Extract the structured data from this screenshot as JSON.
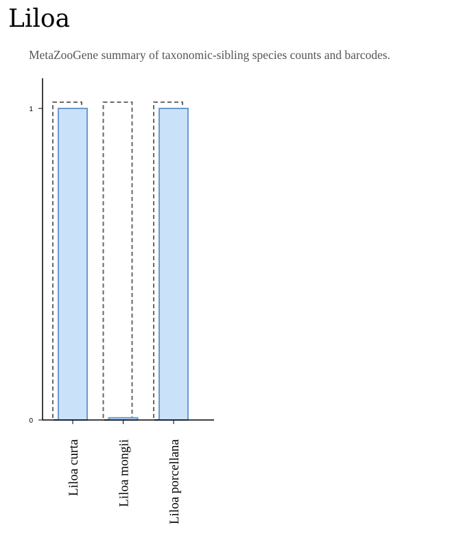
{
  "header": {
    "title": "Liloa",
    "subtitle": "MetaZooGene summary of taxonomic-sibling species counts and barcodes."
  },
  "chart_data": {
    "type": "bar",
    "categories": [
      "Liloa curta",
      "Liloa mongii",
      "Liloa porcellana"
    ],
    "series": [
      {
        "values": [
          1.02,
          1.02,
          1.02
        ],
        "style": "dashed-outline",
        "color": "#666666"
      },
      {
        "values": [
          1.0,
          0.007,
          1.0
        ],
        "style": "filled",
        "color": "#c9e2fa",
        "stroke": "#6a99cf"
      }
    ],
    "yticks": [
      0,
      1
    ],
    "ytick_labels": [
      "0",
      "1"
    ],
    "ylim": [
      0,
      1.1
    ],
    "xlabel": "",
    "ylabel": "",
    "grid": false,
    "legend": "none"
  }
}
